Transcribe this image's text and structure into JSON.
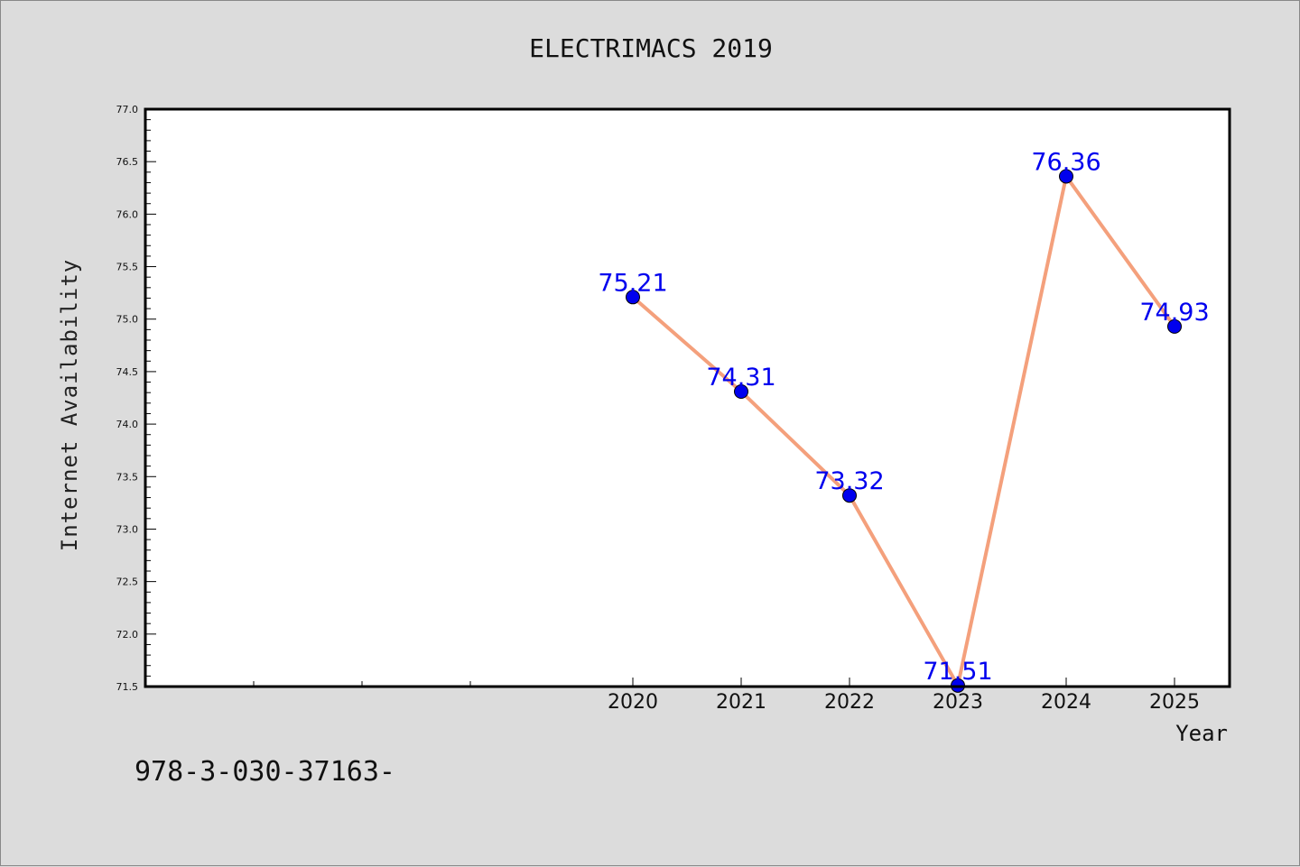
{
  "footer_text": "978-3-030-37163-",
  "chart_data": {
    "type": "line",
    "title": "ELECTRIMACS 2019",
    "xlabel": "Year",
    "ylabel": "Internet Availability",
    "x": [
      2020,
      2021,
      2022,
      2023,
      2024,
      2025
    ],
    "series": [
      {
        "values": [
          75.21,
          74.31,
          73.32,
          71.51,
          76.36,
          74.93
        ],
        "data_labels": [
          "75.21",
          "74.31",
          "73.32",
          "71.51",
          "76.36",
          "74.93"
        ]
      }
    ],
    "ylim": [
      71.5,
      77.0
    ],
    "y_ticks": [
      "71.5",
      "72.0",
      "72.5",
      "73.0",
      "73.5",
      "74.0",
      "74.5",
      "75.0",
      "75.5",
      "76.0",
      "76.5",
      "77.0"
    ],
    "x_ticks": [
      "2020",
      "2021",
      "2022",
      "2023",
      "2024",
      "2025"
    ],
    "x_minor_ticks": [
      2016,
      2017,
      2018,
      2019
    ],
    "grid": false,
    "legend": "none",
    "colors": {
      "line": "#f4a07c",
      "marker": "#0000ee",
      "label": "#0000ee",
      "plot_background": "#ffffff",
      "page_background": "#dcdcdc"
    }
  }
}
